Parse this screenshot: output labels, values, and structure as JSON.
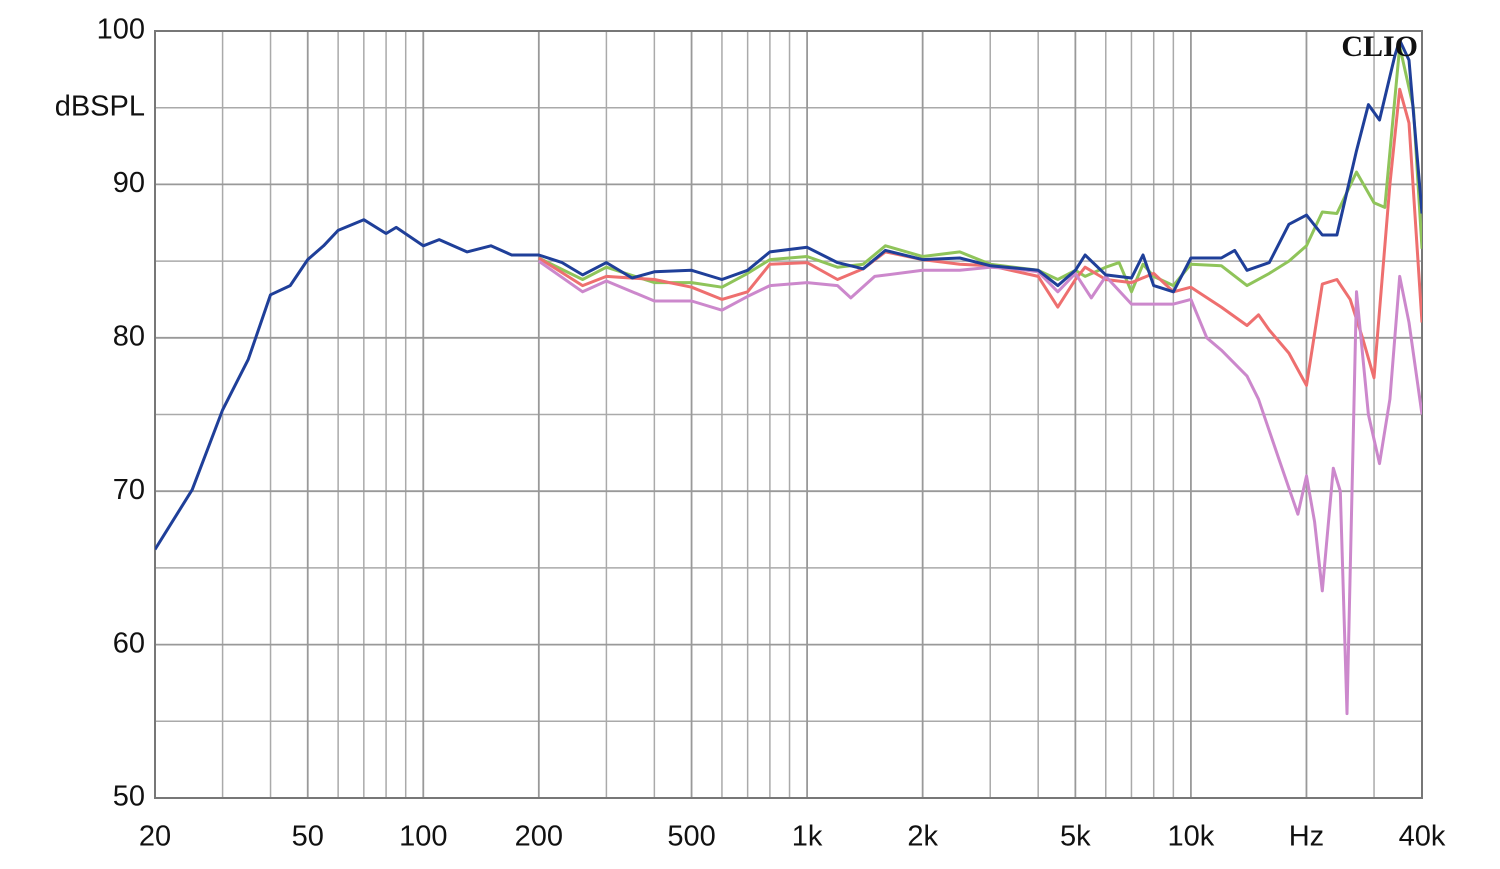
{
  "chart_data": {
    "type": "line",
    "y_label": "dBSPL",
    "annotation": "CLIO",
    "x_scale": "log",
    "grid": true,
    "xlim": [
      20,
      40000
    ],
    "ylim": [
      50,
      100
    ],
    "xticks": [
      20,
      50,
      100,
      200,
      500,
      {
        "value": 1000,
        "label": "1k"
      },
      {
        "value": 2000,
        "label": "2k"
      },
      {
        "value": 5000,
        "label": "5k"
      },
      {
        "value": 10000,
        "label": "10k"
      },
      {
        "value": 20000,
        "label": "Hz"
      },
      {
        "value": 40000,
        "label": "40k"
      }
    ],
    "xminor": [
      30,
      40,
      60,
      70,
      80,
      90,
      300,
      400,
      600,
      700,
      800,
      900,
      3000,
      4000,
      6000,
      7000,
      8000,
      9000,
      30000
    ],
    "yticks": [
      50,
      60,
      70,
      80,
      90,
      100
    ],
    "yminor": [
      55,
      65,
      75,
      85,
      95
    ],
    "series": [
      {
        "color": "#8fc45a",
        "x": [
          200,
          260,
          300,
          400,
          500,
          600,
          700,
          800,
          1000,
          1200,
          1400,
          1600,
          2000,
          2500,
          3000,
          4000,
          4500,
          5000,
          5300,
          6000,
          6500,
          7000,
          7500,
          8000,
          9000,
          10000,
          12000,
          14000,
          16000,
          18000,
          20000,
          22000,
          24000,
          27000,
          30000,
          32000,
          35000,
          38000,
          40000
        ],
        "values": [
          85.2,
          83.8,
          84.6,
          83.6,
          83.6,
          83.3,
          84.2,
          85.1,
          85.3,
          84.6,
          84.8,
          86.0,
          85.3,
          85.6,
          84.8,
          84.4,
          83.8,
          84.4,
          84.0,
          84.6,
          84.9,
          83.0,
          84.8,
          84.0,
          83.4,
          84.8,
          84.7,
          83.4,
          84.2,
          85.0,
          86.0,
          88.2,
          88.1,
          90.8,
          88.8,
          88.5,
          99.0,
          95.0,
          85.8
        ]
      },
      {
        "color": "#ee6f6f",
        "x": [
          200,
          260,
          300,
          400,
          500,
          600,
          700,
          800,
          1000,
          1200,
          1400,
          1600,
          2000,
          2500,
          3000,
          4000,
          4500,
          5000,
          5300,
          6000,
          7000,
          8000,
          9000,
          10000,
          12000,
          14000,
          15000,
          16000,
          18000,
          20000,
          22000,
          24000,
          26000,
          28000,
          30000,
          33000,
          35000,
          37000,
          40000
        ],
        "values": [
          85.2,
          83.4,
          84.0,
          83.8,
          83.3,
          82.5,
          83.0,
          84.8,
          84.9,
          83.8,
          84.5,
          85.6,
          85.1,
          84.8,
          84.7,
          84.0,
          82.0,
          83.8,
          84.6,
          83.8,
          83.6,
          84.2,
          83.0,
          83.3,
          82.0,
          80.8,
          81.5,
          80.5,
          79.0,
          76.9,
          83.5,
          83.8,
          82.5,
          80.0,
          77.4,
          90.0,
          96.2,
          94.0,
          81.0
        ]
      },
      {
        "color": "#cc88cc",
        "x": [
          200,
          260,
          300,
          400,
          500,
          600,
          700,
          800,
          1000,
          1200,
          1300,
          1500,
          2000,
          2500,
          3000,
          3500,
          4000,
          4500,
          5000,
          5500,
          6000,
          7000,
          8000,
          9000,
          10000,
          11000,
          12000,
          14000,
          15000,
          17000,
          19000,
          20000,
          21000,
          22000,
          23500,
          24500,
          25500,
          27000,
          29000,
          31000,
          33000,
          35000,
          37000,
          40000
        ],
        "values": [
          85.0,
          83.0,
          83.7,
          82.4,
          82.4,
          81.8,
          82.7,
          83.4,
          83.6,
          83.4,
          82.6,
          84.0,
          84.4,
          84.4,
          84.6,
          84.5,
          84.3,
          83.0,
          84.2,
          82.6,
          84.0,
          82.2,
          82.2,
          82.2,
          82.5,
          80.0,
          79.2,
          77.5,
          76.0,
          72.0,
          68.5,
          71.0,
          68.0,
          63.5,
          71.5,
          70.0,
          55.5,
          83.0,
          75.0,
          71.8,
          76.0,
          84.0,
          81.0,
          75.0
        ]
      },
      {
        "color": "#1f3f99",
        "x": [
          20,
          25,
          30,
          35,
          40,
          45,
          50,
          55,
          60,
          70,
          80,
          85,
          100,
          110,
          130,
          150,
          170,
          200,
          230,
          260,
          300,
          350,
          400,
          500,
          600,
          700,
          800,
          1000,
          1200,
          1400,
          1600,
          2000,
          2500,
          3000,
          4000,
          4500,
          5000,
          5300,
          6000,
          7000,
          7500,
          8000,
          9000,
          10000,
          12000,
          13000,
          14000,
          16000,
          18000,
          20000,
          22000,
          24000,
          27000,
          29000,
          31000,
          34000,
          35000,
          37000,
          40000
        ],
        "values": [
          66.2,
          70.1,
          75.3,
          78.6,
          82.8,
          83.4,
          85.1,
          86.0,
          87.0,
          87.7,
          86.8,
          87.2,
          86.0,
          86.4,
          85.6,
          86.0,
          85.4,
          85.4,
          84.9,
          84.1,
          84.9,
          83.9,
          84.3,
          84.4,
          83.8,
          84.4,
          85.6,
          85.9,
          84.9,
          84.5,
          85.7,
          85.1,
          85.2,
          84.7,
          84.4,
          83.4,
          84.4,
          85.4,
          84.1,
          83.9,
          85.4,
          83.4,
          83.0,
          85.2,
          85.2,
          85.7,
          84.4,
          84.9,
          87.4,
          88.0,
          86.7,
          86.7,
          92.2,
          95.2,
          94.2,
          98.4,
          99.4,
          98.1,
          88.1
        ]
      }
    ]
  }
}
